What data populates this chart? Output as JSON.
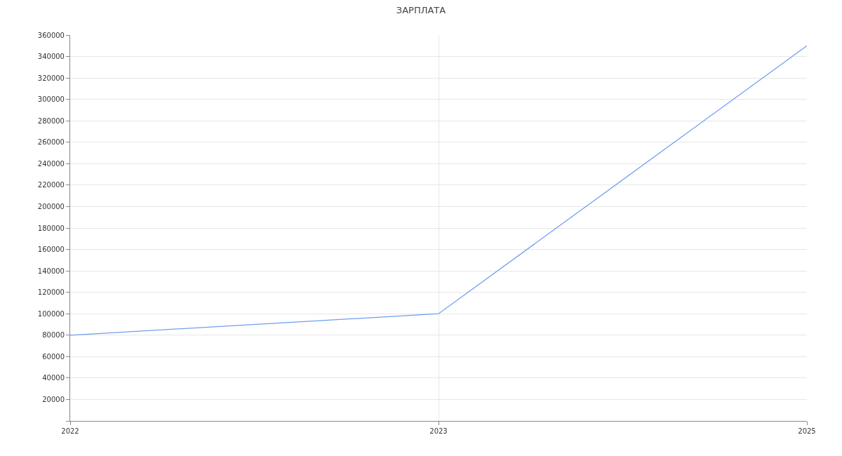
{
  "chart_data": {
    "type": "line",
    "title": "ЗАРПЛАТА",
    "categories": [
      "2022",
      "2023",
      "2025"
    ],
    "series": [
      {
        "color": "#6f9ef0",
        "values": [
          80000,
          100000,
          350000
        ]
      }
    ],
    "ylim": [
      0,
      360000
    ],
    "yticks": [
      {
        "value": 0,
        "label": null
      },
      20000,
      40000,
      60000,
      80000,
      100000,
      120000,
      140000,
      160000,
      180000,
      200000,
      220000,
      240000,
      260000,
      280000,
      300000,
      320000,
      340000,
      360000
    ],
    "grid": true,
    "marker": "none",
    "line_style": "solid"
  }
}
